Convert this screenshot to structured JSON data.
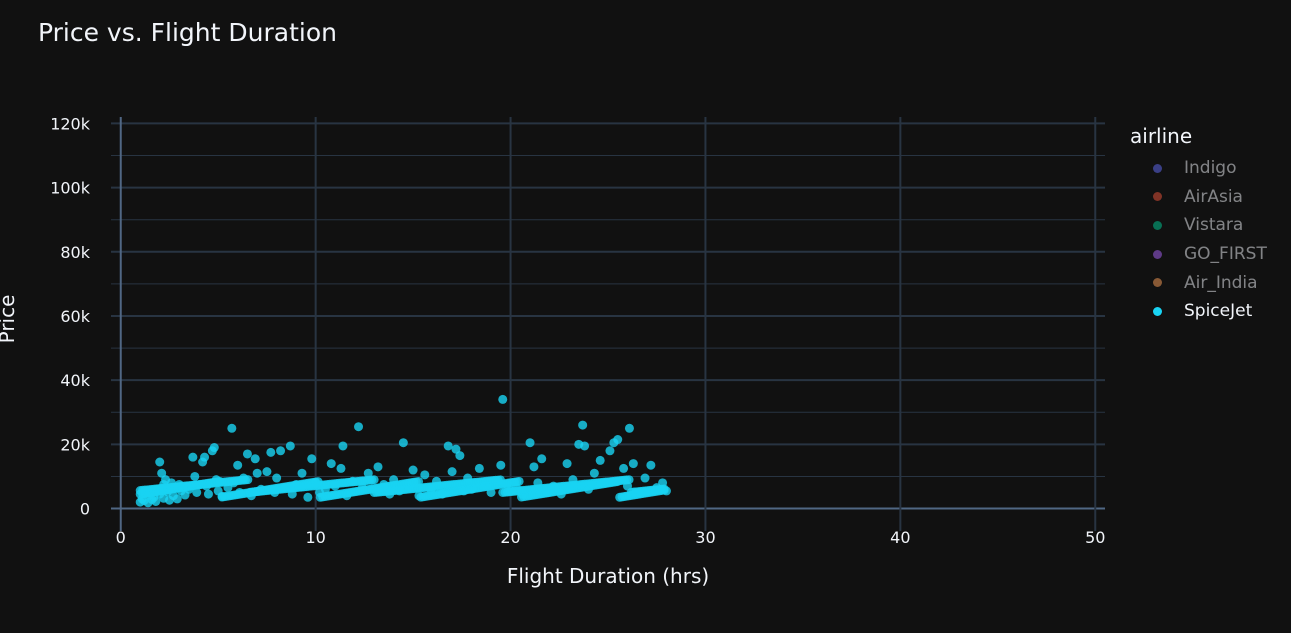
{
  "chart_data": {
    "type": "scatter",
    "title": "Price vs. Flight Duration",
    "xlabel": "Flight Duration (hrs)",
    "ylabel": "Price",
    "xlim": [
      -0.5,
      50.5
    ],
    "ylim": [
      -7000,
      122000
    ],
    "x_ticks": [
      0,
      10,
      20,
      30,
      40,
      50
    ],
    "x_tick_labels": [
      "0",
      "10",
      "20",
      "30",
      "40",
      "50"
    ],
    "y_ticks": [
      0,
      20000,
      40000,
      60000,
      80000,
      100000,
      120000
    ],
    "y_tick_labels": [
      "0",
      "20k",
      "40k",
      "60k",
      "80k",
      "100k",
      "120k"
    ],
    "grid": true,
    "legend_title": "airline",
    "legend_position": "right",
    "series": [
      {
        "name": "Indigo",
        "color": "#636efa",
        "visible": false,
        "points": []
      },
      {
        "name": "AirAsia",
        "color": "#EF553B",
        "visible": false,
        "points": []
      },
      {
        "name": "Vistara",
        "color": "#00cc96",
        "visible": false,
        "points": []
      },
      {
        "name": "GO_FIRST",
        "color": "#ab63fa",
        "visible": false,
        "points": []
      },
      {
        "name": "Air_India",
        "color": "#FFA15A",
        "visible": false,
        "points": []
      },
      {
        "name": "SpiceJet",
        "color": "#19d3f3",
        "visible": true,
        "points": [
          [
            1.0,
            2000
          ],
          [
            1.1,
            3000
          ],
          [
            1.2,
            2500
          ],
          [
            1.3,
            5000
          ],
          [
            1.4,
            1800
          ],
          [
            1.5,
            4200
          ],
          [
            1.6,
            2800
          ],
          [
            1.7,
            3500
          ],
          [
            1.8,
            2200
          ],
          [
            1.9,
            6000
          ],
          [
            2.0,
            14500
          ],
          [
            2.0,
            4500
          ],
          [
            2.1,
            11000
          ],
          [
            2.2,
            7500
          ],
          [
            2.2,
            3200
          ],
          [
            2.3,
            9000
          ],
          [
            2.4,
            5200
          ],
          [
            2.5,
            2600
          ],
          [
            2.6,
            8000
          ],
          [
            2.7,
            4000
          ],
          [
            2.8,
            6500
          ],
          [
            2.9,
            3000
          ],
          [
            3.0,
            7500
          ],
          [
            3.1,
            5500
          ],
          [
            3.3,
            4200
          ],
          [
            3.5,
            6000
          ],
          [
            3.7,
            16000
          ],
          [
            3.8,
            10000
          ],
          [
            3.9,
            5000
          ],
          [
            4.2,
            14500
          ],
          [
            4.3,
            16000
          ],
          [
            4.4,
            7000
          ],
          [
            4.5,
            4500
          ],
          [
            4.7,
            18000
          ],
          [
            4.8,
            19000
          ],
          [
            4.9,
            9000
          ],
          [
            5.0,
            5500
          ],
          [
            5.2,
            3800
          ],
          [
            5.5,
            6500
          ],
          [
            5.7,
            25000
          ],
          [
            5.8,
            8000
          ],
          [
            6.0,
            13500
          ],
          [
            6.1,
            5000
          ],
          [
            6.3,
            9500
          ],
          [
            6.5,
            17000
          ],
          [
            6.7,
            4000
          ],
          [
            6.9,
            15500
          ],
          [
            7.0,
            11000
          ],
          [
            7.2,
            6000
          ],
          [
            7.5,
            11500
          ],
          [
            7.7,
            17500
          ],
          [
            7.9,
            5000
          ],
          [
            8.0,
            9500
          ],
          [
            8.2,
            18000
          ],
          [
            8.4,
            6500
          ],
          [
            8.7,
            19500
          ],
          [
            8.8,
            4500
          ],
          [
            9.0,
            7500
          ],
          [
            9.3,
            11000
          ],
          [
            9.6,
            3500
          ],
          [
            9.8,
            15500
          ],
          [
            10.0,
            8000
          ],
          [
            10.2,
            5000
          ],
          [
            10.5,
            6000
          ],
          [
            10.8,
            14000
          ],
          [
            11.0,
            7000
          ],
          [
            11.3,
            12500
          ],
          [
            11.4,
            19500
          ],
          [
            11.6,
            4000
          ],
          [
            11.9,
            8500
          ],
          [
            12.2,
            25500
          ],
          [
            12.4,
            6500
          ],
          [
            12.7,
            11000
          ],
          [
            13.0,
            5000
          ],
          [
            13.2,
            13000
          ],
          [
            13.5,
            7500
          ],
          [
            13.8,
            4500
          ],
          [
            14.0,
            9000
          ],
          [
            14.3,
            5500
          ],
          [
            14.5,
            20500
          ],
          [
            14.8,
            7000
          ],
          [
            15.0,
            12000
          ],
          [
            15.3,
            4000
          ],
          [
            15.6,
            10500
          ],
          [
            15.9,
            6000
          ],
          [
            16.2,
            8500
          ],
          [
            16.5,
            4500
          ],
          [
            16.8,
            19500
          ],
          [
            17.0,
            11500
          ],
          [
            17.2,
            18500
          ],
          [
            17.4,
            16500
          ],
          [
            17.6,
            5500
          ],
          [
            17.8,
            9500
          ],
          [
            18.0,
            6000
          ],
          [
            18.4,
            12500
          ],
          [
            18.7,
            7000
          ],
          [
            19.0,
            5000
          ],
          [
            19.5,
            13500
          ],
          [
            19.6,
            34000
          ],
          [
            19.8,
            7500
          ],
          [
            20.0,
            5500
          ],
          [
            20.3,
            6500
          ],
          [
            20.6,
            4500
          ],
          [
            21.0,
            20500
          ],
          [
            21.2,
            13000
          ],
          [
            21.4,
            8000
          ],
          [
            21.6,
            15500
          ],
          [
            21.9,
            5000
          ],
          [
            22.2,
            7000
          ],
          [
            22.6,
            4500
          ],
          [
            22.9,
            14000
          ],
          [
            23.2,
            9000
          ],
          [
            23.5,
            20000
          ],
          [
            23.7,
            26000
          ],
          [
            23.8,
            19500
          ],
          [
            24.0,
            6000
          ],
          [
            24.3,
            11000
          ],
          [
            24.6,
            15000
          ],
          [
            24.9,
            8000
          ],
          [
            25.1,
            18000
          ],
          [
            25.3,
            20500
          ],
          [
            25.5,
            21500
          ],
          [
            25.8,
            12500
          ],
          [
            26.0,
            7000
          ],
          [
            26.1,
            25000
          ],
          [
            26.3,
            14000
          ],
          [
            26.6,
            5000
          ],
          [
            26.9,
            9500
          ],
          [
            27.2,
            13500
          ],
          [
            27.5,
            6500
          ],
          [
            27.8,
            8000
          ],
          [
            28.0,
            5500
          ]
        ]
      }
    ]
  }
}
